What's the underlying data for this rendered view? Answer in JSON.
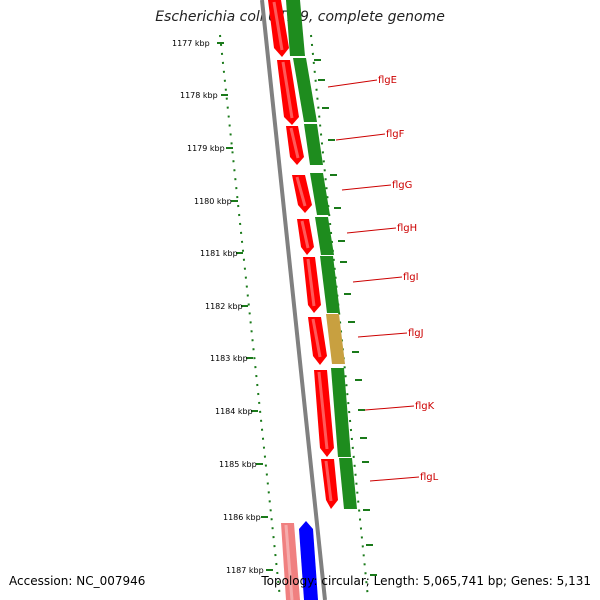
{
  "title": "Escherichia coli UTI89, complete genome",
  "footer": {
    "accession": "Accession: NC_007946",
    "summary": "Topology: circular; Length: 5,065,741 bp; Genes: 5,131"
  },
  "colors": {
    "backbone": "#808080",
    "red_gene": "#ff0000",
    "green_gene": "#1e8c1e",
    "highlight_gene": "#c8a040",
    "blue_gene": "#0000ff",
    "pink_gene": "#f08080",
    "label": "#cc0000",
    "dots": "#1a7a1a"
  },
  "scale_kbp": [
    "1177 kbp",
    "1178 kbp",
    "1179 kbp",
    "1180 kbp",
    "1181 kbp",
    "1182 kbp",
    "1183 kbp",
    "1184 kbp",
    "1185 kbp",
    "1186 kbp",
    "1187 kbp"
  ],
  "gene_labels": [
    "flgE",
    "flgF",
    "flgG",
    "flgH",
    "flgI",
    "flgJ",
    "flgK",
    "flgL"
  ]
}
